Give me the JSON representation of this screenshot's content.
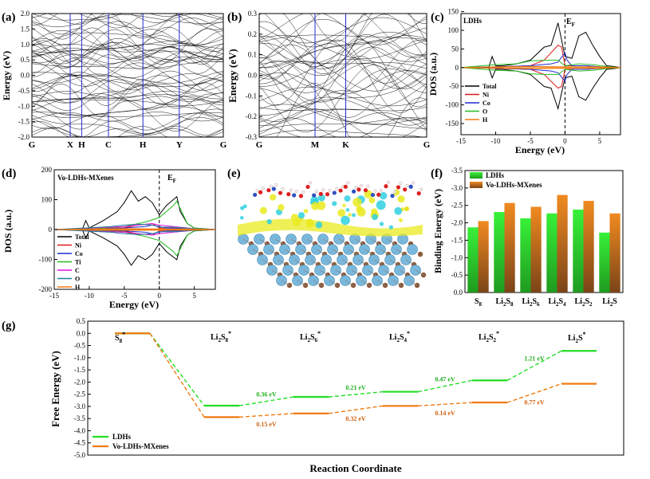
{
  "colors": {
    "green": "#22dd22",
    "orange": "#f07a10",
    "blue": "#1f2ccf",
    "red": "#e01818",
    "magenta": "#e010e0",
    "axis": "#000000",
    "slab_blue": "#79b8dd",
    "slab_brown": "#8a5a3c",
    "iso_yellow": "#eaea20",
    "iso_cyan": "#30d0e0"
  },
  "chart_data": [
    {
      "id": "a",
      "panel_label": "(a)",
      "type": "line",
      "subtype": "band-structure",
      "ylabel": "Energy (eV)",
      "ylim": [
        -2.0,
        2.0
      ],
      "yticks": [
        "2.0",
        "1.5",
        "1.0",
        "0.5",
        "0.0",
        "-0.5",
        "-1.0",
        "-1.5",
        "-2.0"
      ],
      "kpoints": [
        "G",
        "X",
        "H",
        "C",
        "H",
        "Y",
        "G"
      ],
      "kpoint_positions": [
        0,
        1,
        1.3,
        2.0,
        2.9,
        3.85,
        5.0
      ]
    },
    {
      "id": "b",
      "panel_label": "(b)",
      "type": "line",
      "subtype": "band-structure",
      "ylabel": "Energy (eV)",
      "ylim": [
        -0.3,
        0.3
      ],
      "yticks": [
        "0.3",
        "0.2",
        "0.1",
        "0.0",
        "-0.1",
        "-0.2",
        "-0.3"
      ],
      "kpoints": [
        "G",
        "M",
        "K",
        "G"
      ],
      "kpoint_positions": [
        0,
        1,
        1.55,
        3.0
      ]
    },
    {
      "id": "c",
      "panel_label": "(c)",
      "type": "line",
      "subtype": "density-of-states",
      "title": "LDHs",
      "fermi_label": "E",
      "fermi_sub": "F",
      "xlabel": "Energy (eV)",
      "ylabel": "DOS (a.u.)",
      "xlim": [
        -15,
        8
      ],
      "ylim": [
        -180,
        145
      ],
      "xticks": [
        "-15",
        "-10",
        "-5",
        "0",
        "5"
      ],
      "yticks": [
        "150",
        "100",
        "50",
        "0",
        "-50",
        "-100",
        "-150"
      ],
      "legend_position": "bottom-left",
      "series": [
        {
          "name": "Total",
          "color": "#000000",
          "x": [
            -15,
            -11,
            -10.5,
            -10,
            -9,
            -7,
            -5,
            -3,
            -2,
            -1,
            0,
            1,
            2,
            3,
            4,
            5,
            6,
            7,
            8
          ],
          "y": [
            0,
            0,
            30,
            5,
            5,
            10,
            20,
            55,
            60,
            120,
            30,
            25,
            85,
            95,
            60,
            30,
            5,
            3,
            0
          ]
        },
        {
          "name": "Ni",
          "color": "#e01818",
          "x": [
            -15,
            -10,
            -5,
            -3,
            -1,
            -0.5,
            0,
            1,
            3,
            5,
            8
          ],
          "y": [
            0,
            2,
            5,
            20,
            60,
            55,
            5,
            5,
            5,
            2,
            0
          ]
        },
        {
          "name": "Co",
          "color": "#1f2ccf",
          "x": [
            -15,
            -10,
            -5,
            -2,
            -1,
            0,
            0.3,
            1,
            3,
            5,
            8
          ],
          "y": [
            0,
            2,
            5,
            10,
            15,
            40,
            20,
            5,
            5,
            2,
            0
          ]
        },
        {
          "name": "O",
          "color": "#22bb22",
          "x": [
            -15,
            -10,
            -7,
            -5,
            -3,
            -1,
            0,
            2,
            4,
            6,
            8
          ],
          "y": [
            0,
            8,
            10,
            18,
            20,
            20,
            5,
            10,
            8,
            3,
            0
          ]
        },
        {
          "name": "H",
          "color": "#f07a10",
          "x": [
            -15,
            -10,
            -5,
            0,
            5,
            8
          ],
          "y": [
            0,
            2,
            3,
            2,
            2,
            0
          ]
        }
      ]
    },
    {
      "id": "d",
      "panel_label": "(d)",
      "type": "line",
      "subtype": "density-of-states",
      "title": "Vo-LDHs-MXenes",
      "fermi_label": "E",
      "fermi_sub": "F",
      "xlabel": "Energy (eV)",
      "ylabel": "DOS (a.u.)",
      "xlim": [
        -15,
        8
      ],
      "ylim": [
        -200,
        200
      ],
      "xticks": [
        "-15",
        "-10",
        "-5",
        "0",
        "5"
      ],
      "yticks": [
        "200",
        "100",
        "0",
        "-100",
        "-200"
      ],
      "legend_position": "bottom-left",
      "series": [
        {
          "name": "Total",
          "color": "#000000",
          "x": [
            -15,
            -11,
            -10.5,
            -10,
            -8,
            -6,
            -5,
            -4,
            -3,
            -2,
            -1,
            0,
            1,
            2,
            2.5,
            3,
            4,
            5,
            8
          ],
          "y": [
            0,
            0,
            30,
            5,
            30,
            60,
            90,
            130,
            95,
            110,
            90,
            50,
            80,
            100,
            110,
            60,
            20,
            5,
            0
          ]
        },
        {
          "name": "Ni",
          "color": "#e01818",
          "x": [
            -15,
            -10,
            -5,
            -3,
            -1,
            0,
            2,
            5,
            8
          ],
          "y": [
            0,
            2,
            6,
            15,
            20,
            5,
            5,
            2,
            0
          ]
        },
        {
          "name": "Co",
          "color": "#1f2ccf",
          "x": [
            -15,
            -10,
            -5,
            -2,
            -1,
            0,
            1,
            5,
            8
          ],
          "y": [
            0,
            2,
            5,
            10,
            15,
            10,
            5,
            2,
            0
          ]
        },
        {
          "name": "Ti",
          "color": "#22bb22",
          "x": [
            -15,
            -10,
            -5,
            -2,
            0,
            1,
            2,
            2.5,
            3,
            4,
            5,
            8
          ],
          "y": [
            0,
            2,
            10,
            25,
            40,
            60,
            80,
            95,
            70,
            20,
            5,
            0
          ]
        },
        {
          "name": "C",
          "color": "#e010e0",
          "x": [
            -15,
            -10,
            -5,
            -3,
            -1,
            0,
            2,
            5,
            8
          ],
          "y": [
            0,
            5,
            10,
            15,
            20,
            15,
            10,
            3,
            0
          ]
        },
        {
          "name": "O",
          "color": "#2080a0",
          "x": [
            -15,
            -10,
            -7,
            -5,
            -3,
            -1,
            0,
            2,
            5,
            8
          ],
          "y": [
            0,
            6,
            10,
            15,
            18,
            15,
            8,
            8,
            3,
            0
          ]
        },
        {
          "name": "H",
          "color": "#f07a10",
          "x": [
            -15,
            -10,
            -5,
            0,
            5,
            8
          ],
          "y": [
            0,
            2,
            3,
            2,
            2,
            0
          ]
        }
      ]
    },
    {
      "id": "f",
      "panel_label": "(f)",
      "type": "bar",
      "ylabel": "Binding Energy (eV)",
      "ylim": [
        0,
        -3.5
      ],
      "yticks": [
        "-3.5",
        "-3.0",
        "-2.5",
        "-2.0",
        "-1.5",
        "-1.0",
        "-0.5",
        "0.0"
      ],
      "legend_position": "top-left",
      "categories": [
        {
          "main": "S",
          "sub": "8"
        },
        {
          "main": "Li",
          "sub": "2",
          "main2": "S",
          "sub2": "8"
        },
        {
          "main": "Li",
          "sub": "2",
          "main2": "S",
          "sub2": "6"
        },
        {
          "main": "Li",
          "sub": "2",
          "main2": "S",
          "sub2": "4"
        },
        {
          "main": "Li",
          "sub": "2",
          "main2": "S",
          "sub2": "2"
        },
        {
          "main": "Li",
          "sub": "2",
          "main2": "S",
          "sub2": ""
        }
      ],
      "series": [
        {
          "name": "LDHs",
          "color": "#22dd22",
          "values": [
            -1.87,
            -2.31,
            -2.13,
            -2.27,
            -2.38,
            -1.72
          ]
        },
        {
          "name": "Vo-LDHs-MXenes",
          "color": "#f07a10",
          "values": [
            -2.05,
            -2.57,
            -2.46,
            -2.8,
            -2.63,
            -2.27
          ]
        }
      ]
    },
    {
      "id": "g",
      "panel_label": "(g)",
      "type": "line",
      "subtype": "free-energy-profile",
      "xlabel": "Reaction Coordinate",
      "ylabel": "Free Energy (eV)",
      "ylim": [
        -5.0,
        0.5
      ],
      "yticks": [
        "0.5",
        "0.0",
        "-0.5",
        "-1.0",
        "-1.5",
        "-2.0",
        "-2.5",
        "-3.0",
        "-3.5",
        "-4.0",
        "-4.5",
        "-5.0"
      ],
      "legend_position": "bottom-left",
      "steps": [
        {
          "main": "S",
          "sub": "8",
          "sup": "*"
        },
        {
          "main": "Li",
          "sub": "2",
          "main2": "S",
          "sub2": "8",
          "sup": "*"
        },
        {
          "main": "Li",
          "sub": "2",
          "main2": "S",
          "sub2": "6",
          "sup": "*"
        },
        {
          "main": "Li",
          "sub": "2",
          "main2": "S",
          "sub2": "4",
          "sup": "*"
        },
        {
          "main": "Li",
          "sub": "2",
          "main2": "S",
          "sub2": "2",
          "sup": "*"
        },
        {
          "main": "Li",
          "sub": "2",
          "main2": "S",
          "sub2": "",
          "sup": "*"
        }
      ],
      "series": [
        {
          "name": "LDHs",
          "color": "#22dd22",
          "values": [
            0.0,
            -2.97,
            -2.61,
            -2.4,
            -1.93,
            -0.72
          ],
          "step_labels": [
            "",
            "0.36 eV",
            "0.21 eV",
            "0.47 eV",
            "1.21 eV"
          ]
        },
        {
          "name": "Vo-LDHs-MXenes",
          "color": "#f07a10",
          "values": [
            0.0,
            -3.44,
            -3.29,
            -2.98,
            -2.84,
            -2.07
          ],
          "step_labels": [
            "",
            "0.15 eV",
            "0.32 eV",
            "0.14 eV",
            "0.77 eV"
          ]
        }
      ]
    }
  ],
  "structure_panel": {
    "panel_label": "(e)"
  }
}
